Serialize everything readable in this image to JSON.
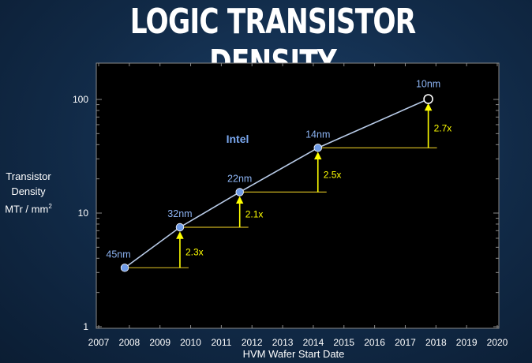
{
  "slide": {
    "title": "LOGIC TRANSISTOR DENSITY"
  },
  "chart_data": {
    "type": "line",
    "title": "LOGIC TRANSISTOR DENSITY",
    "xlabel": "HVM Wafer Start Date",
    "ylabel_lines": [
      "Transistor",
      "Density",
      "MTr / mm"
    ],
    "ylabel_superscript": "2",
    "xlim": [
      2007,
      2020
    ],
    "ylim": [
      1,
      100
    ],
    "yscale": "log",
    "x_ticks": [
      "2007",
      "2008",
      "2009",
      "2010",
      "2011",
      "2012",
      "2013",
      "2014",
      "2015",
      "2016",
      "2017",
      "2018",
      "2019",
      "2020"
    ],
    "y_ticks": [
      {
        "value": 1,
        "label": "1"
      },
      {
        "value": 10,
        "label": "10"
      },
      {
        "value": 100,
        "label": "100"
      }
    ],
    "series": [
      {
        "name": "Intel",
        "points": [
          {
            "label": "45nm",
            "x": 2007.85,
            "y": 3.3
          },
          {
            "label": "32nm",
            "x": 2009.65,
            "y": 7.5
          },
          {
            "label": "22nm",
            "x": 2011.6,
            "y": 15.3
          },
          {
            "label": "14nm",
            "x": 2014.15,
            "y": 37.5
          },
          {
            "label": "10nm",
            "x": 2017.75,
            "y": 100.8
          }
        ]
      }
    ],
    "scaling_factors": [
      "2.3x",
      "2.1x",
      "2.5x",
      "2.7x"
    ],
    "grid": false,
    "colors": {
      "plot_background": "#000000",
      "line": "#b8cbe8",
      "marker": "#6f9be6",
      "label": "#8cb3f2",
      "arrow": "#ffff00",
      "baseline": "#c9b020",
      "series_name": "#7aa8f0"
    }
  }
}
